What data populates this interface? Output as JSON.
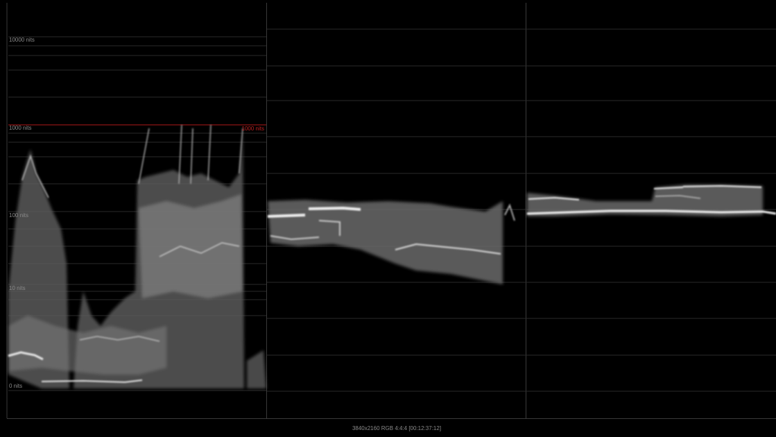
{
  "scale_labels": [
    "10000 nits",
    "1000 nits",
    "100 nits",
    "10 nits",
    "0 nits"
  ],
  "reference_label": "1000 nits",
  "status": "3840x2160 RGB 4:4:4 [00:12:37:12]"
}
